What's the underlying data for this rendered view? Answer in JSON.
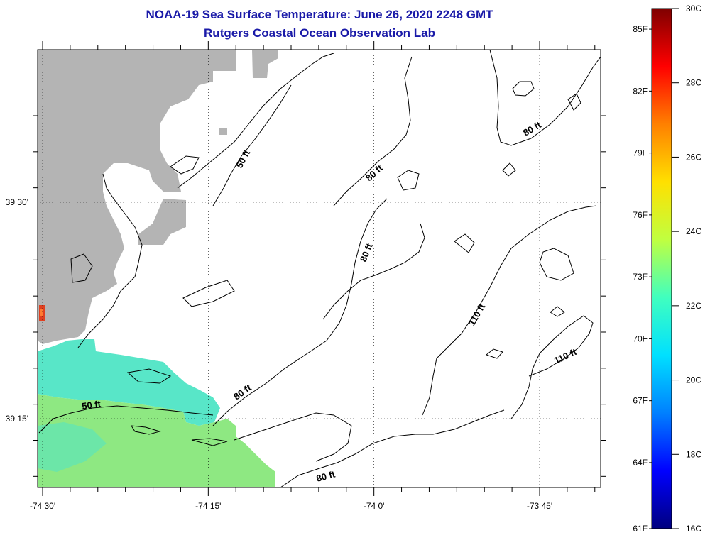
{
  "header": {
    "title": "NOAA-19 Sea Surface Temperature:  June 26, 2020 2248 GMT",
    "subtitle": "Rutgers Coastal Ocean Observation Lab"
  },
  "map": {
    "lat_ticks": [
      {
        "value": 39.5,
        "label": "39 30'"
      },
      {
        "value": 39.25,
        "label": "39 15'"
      }
    ],
    "lon_ticks": [
      {
        "value": -74.5,
        "label": "-74 30'"
      },
      {
        "value": -74.25,
        "label": "-74 15'"
      },
      {
        "value": -74.0,
        "label": "-74 0'"
      },
      {
        "value": -73.75,
        "label": "-73 45'"
      }
    ],
    "contour_labels": [
      "50 ft",
      "80 ft",
      "80 ft",
      "80 ft",
      "110 ft",
      "110 ft",
      "50 ft",
      "80 ft",
      "80 ft"
    ],
    "colors": {
      "land": "#b4b4b4",
      "frame": "#000000"
    }
  },
  "colorbar": {
    "celsius_labels": [
      "30C",
      "28C",
      "26C",
      "24C",
      "22C",
      "20C",
      "18C",
      "16C"
    ],
    "fahrenheit_labels": [
      "85F",
      "82F",
      "79F",
      "76F",
      "73F",
      "70F",
      "67F",
      "64F",
      "61F"
    ],
    "range_c": [
      16,
      30
    ],
    "stops": [
      "#00007f",
      "#0000ff",
      "#0080ff",
      "#00e0ff",
      "#40ffbf",
      "#c0ff40",
      "#ffe000",
      "#ff8000",
      "#ff0000",
      "#7f0000"
    ]
  }
}
